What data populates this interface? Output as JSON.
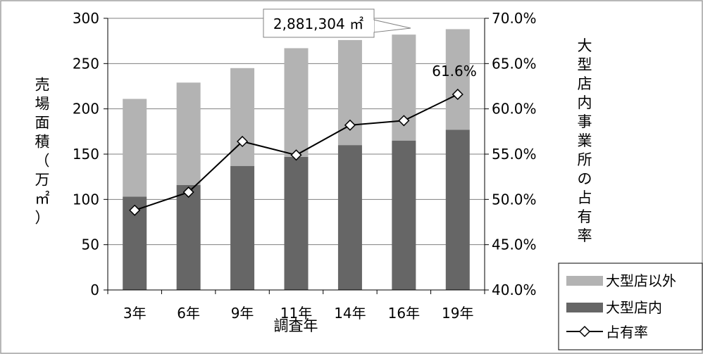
{
  "chart_data": {
    "type": "bar",
    "categories": [
      "3年",
      "6年",
      "9年",
      "11年",
      "14年",
      "16年",
      "19年"
    ],
    "series": [
      {
        "name": "大型店内",
        "kind": "bar-stacked",
        "color": "#666666",
        "values": [
          103,
          116,
          137,
          147,
          160,
          165,
          177
        ]
      },
      {
        "name": "大型店以外",
        "kind": "bar-stacked",
        "color": "#b3b3b3",
        "values": [
          108,
          113,
          108,
          120,
          116,
          117,
          111
        ]
      },
      {
        "name": "占有率",
        "kind": "line",
        "axis": "right",
        "color": "#000000",
        "values": [
          48.8,
          50.8,
          56.4,
          54.9,
          58.2,
          58.7,
          61.6
        ]
      }
    ],
    "xlabel": "調査年",
    "ylabel": "売場面積（万㎡）",
    "ylabel_right": "大型店内事業所の占有率",
    "ylim": [
      0,
      300
    ],
    "yticks": [
      "0",
      "50",
      "100",
      "150",
      "200",
      "250",
      "300"
    ],
    "ylim_right": [
      40,
      70
    ],
    "yticks_right": [
      "40.0%",
      "45.0%",
      "50.0%",
      "55.0%",
      "60.0%",
      "65.0%",
      "70.0%"
    ],
    "grid": "horizontal",
    "legend": [
      "大型店以外",
      "大型店内",
      "占有率"
    ],
    "legend_position": "bottom-right",
    "annotations": {
      "total_callout": "2,881,304 ㎡",
      "last_point_label": "61.6%"
    }
  }
}
